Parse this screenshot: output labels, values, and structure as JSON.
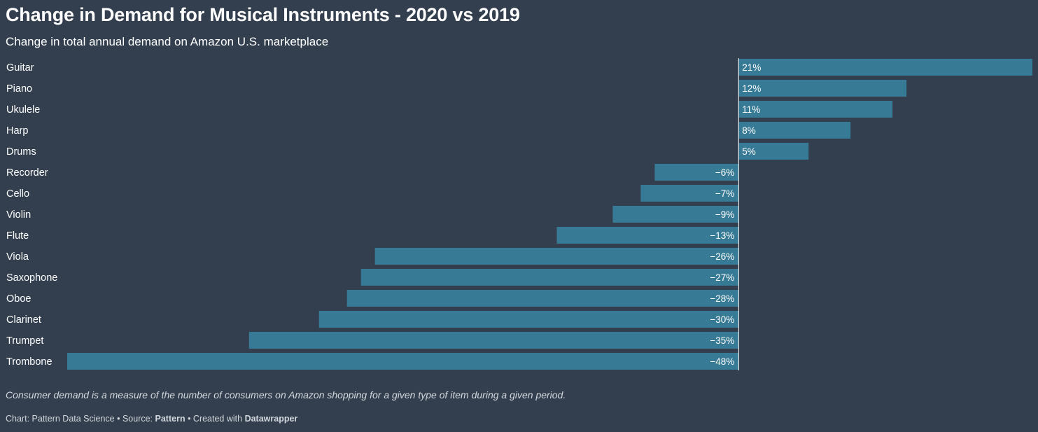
{
  "chart_data": {
    "type": "bar",
    "orientation": "horizontal",
    "title": "Change in Demand for Musical Instruments - 2020 vs 2019",
    "subtitle": "Change in total annual demand on Amazon U.S. marketplace",
    "categories": [
      "Guitar",
      "Piano",
      "Ukulele",
      "Harp",
      "Drums",
      "Recorder",
      "Cello",
      "Violin",
      "Flute",
      "Viola",
      "Saxophone",
      "Oboe",
      "Clarinet",
      "Trumpet",
      "Trombone"
    ],
    "values": [
      21,
      12,
      11,
      8,
      5,
      -6,
      -7,
      -9,
      -13,
      -26,
      -27,
      -28,
      -30,
      -35,
      -48
    ],
    "value_labels": [
      "21%",
      "12%",
      "11%",
      "8%",
      "5%",
      "−6%",
      "−7%",
      "−9%",
      "−13%",
      "−26%",
      "−27%",
      "−28%",
      "−30%",
      "−35%",
      "−48%"
    ],
    "unit": "%",
    "xlim": [
      -48,
      21
    ],
    "grid": false,
    "legend": "none",
    "colors": {
      "bar": "#377a96",
      "background": "#333f4f",
      "baseline": "#ffffff",
      "text": "#ffffff",
      "muted_text": "#d3d8de"
    }
  },
  "notes": "Consumer demand is a measure of the number of consumers on Amazon shopping for a given type of item during a given period.",
  "footer": {
    "chart_prefix": "Chart: Pattern Data Science • Source: ",
    "source": "Pattern",
    "created_prefix": " • Created with ",
    "tool": "Datawrapper"
  }
}
